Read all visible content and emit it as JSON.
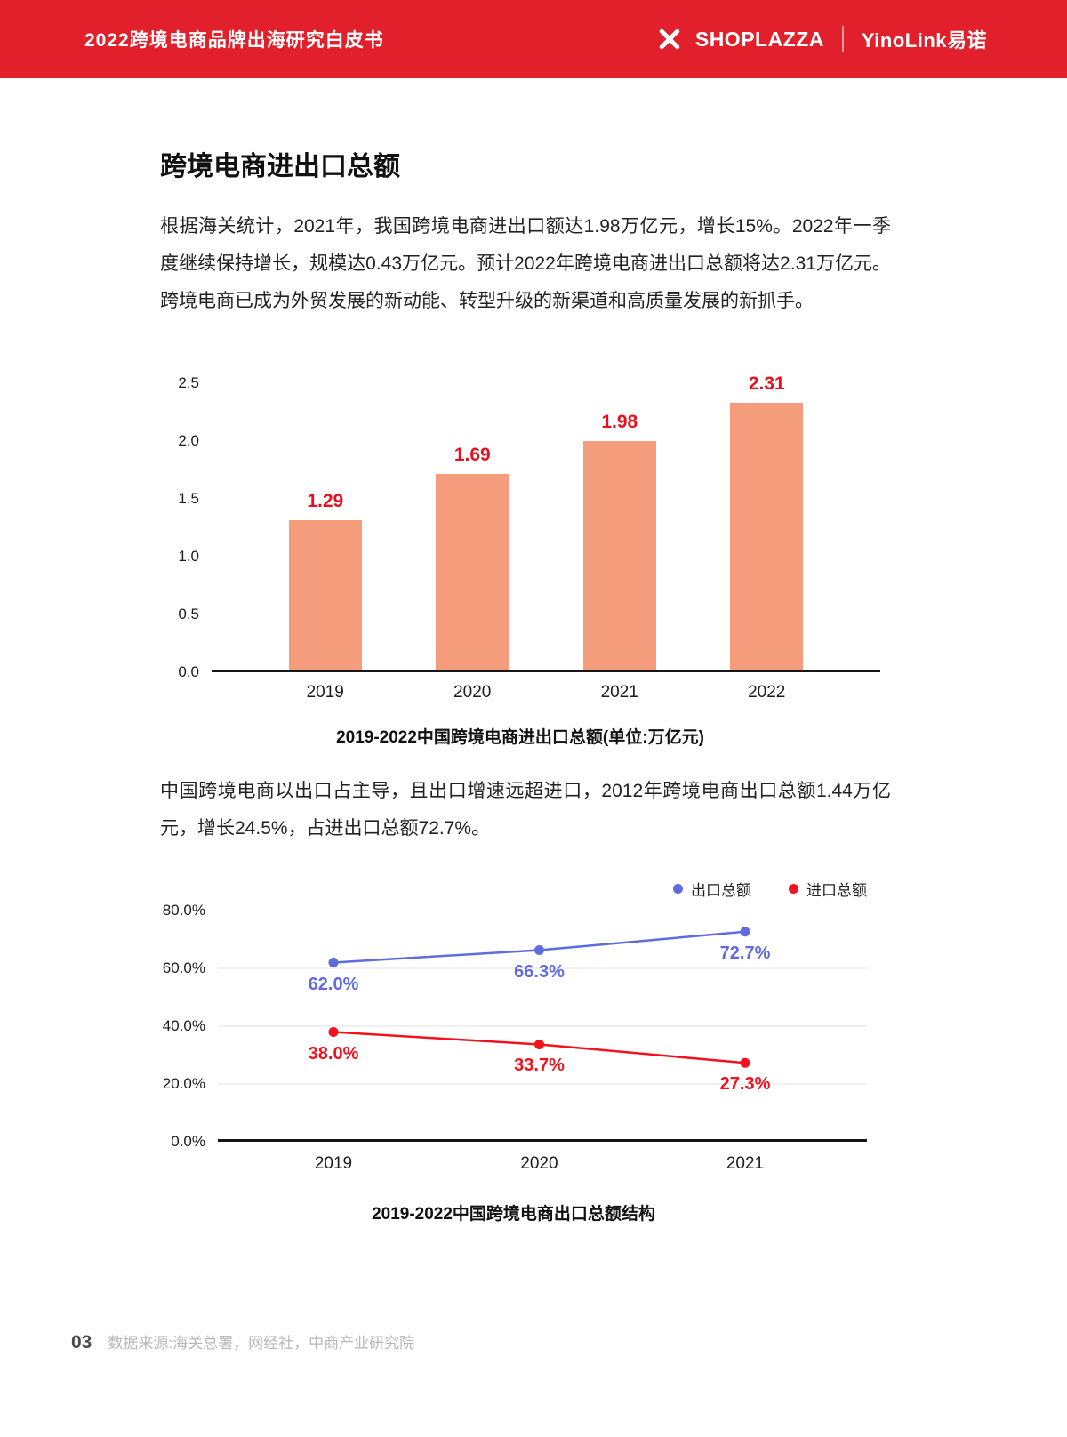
{
  "page": {
    "header": {
      "title": "2022跨境电商品牌出海研究白皮书",
      "brand_left": "SHOPLAZZA",
      "brand_right": "YinoLink易诺",
      "bg_color": "#E2202C"
    },
    "section_title": "跨境电商进出口总额",
    "paragraph1": "根据海关统计，2021年，我国跨境电商进出口额达1.98万亿元，增长15%。2022年一季度继续保持增长，规模达0.43万亿元。预计2022年跨境电商进出口总额将达2.31万亿元。跨境电商已成为外贸发展的新动能、转型升级的新渠道和高质量发展的新抓手。",
    "paragraph2": "中国跨境电商以出口占主导，且出口增速远超进口，2012年跨境电商出口总额1.44万亿元，增长24.5%，占进出口总额72.7%。",
    "footer": {
      "page_number": "03",
      "source": "数据来源:海关总署，网经社，中商产业研究院"
    }
  },
  "chart_data": [
    {
      "type": "bar",
      "title": "2019-2022中国跨境电商进出口总额(单位:万亿元)",
      "categories": [
        "2019",
        "2020",
        "2021",
        "2022"
      ],
      "values": [
        1.29,
        1.69,
        1.98,
        2.31
      ],
      "value_labels": [
        "1.29",
        "1.69",
        "1.98",
        "2.31"
      ],
      "xlabel": "",
      "ylabel": "",
      "ylim": [
        0,
        2.5
      ],
      "yticks": [
        "2.5",
        "2.0",
        "1.5",
        "1.0",
        "0.5",
        "0.0"
      ],
      "grid": false,
      "bar_color": "#F59C7D",
      "label_color": "#E8101F"
    },
    {
      "type": "line",
      "title": "2019-2022中国跨境电商出口总额结构",
      "categories": [
        "2019",
        "2020",
        "2021"
      ],
      "series": [
        {
          "name": "出口总额",
          "color": "#5F6BE0",
          "values": [
            62.0,
            66.3,
            72.7
          ],
          "labels": [
            "62.0%",
            "66.3%",
            "72.7%"
          ]
        },
        {
          "name": "进口总额",
          "color": "#F2121D",
          "values": [
            38.0,
            33.7,
            27.3
          ],
          "labels": [
            "38.0%",
            "33.7%",
            "27.3%"
          ]
        }
      ],
      "xlabel": "",
      "ylabel": "",
      "ylim": [
        0,
        80
      ],
      "yticks": [
        "80.0%",
        "60.0%",
        "40.0%",
        "20.0%",
        "0.0%"
      ],
      "grid": true,
      "legend_position": "top-right"
    }
  ]
}
